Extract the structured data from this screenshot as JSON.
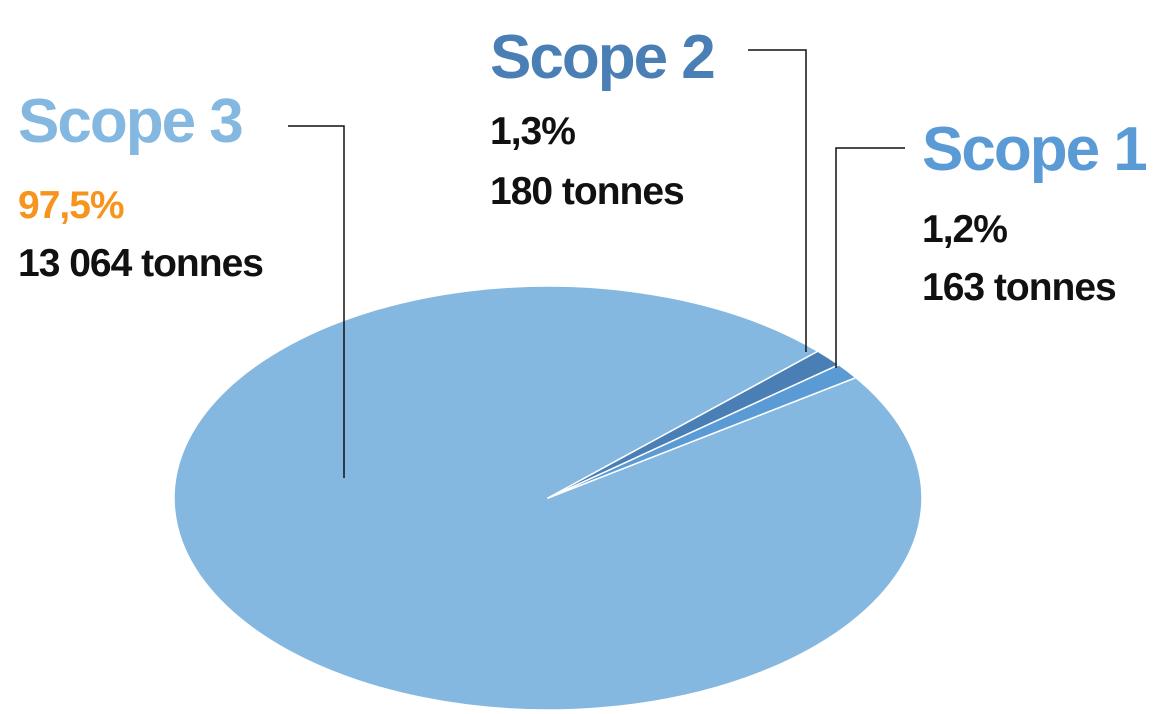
{
  "chart_data": {
    "type": "pie",
    "slices": [
      {
        "label": "Scope 3",
        "percent": "97,5%",
        "tonnes": "13 064 tonnes",
        "value": 13064,
        "color": "#84b8e0",
        "title_color": "#84b8e0",
        "percent_color": "#f7941d"
      },
      {
        "label": "Scope 2",
        "percent": "1,3%",
        "tonnes": "180 tonnes",
        "value": 180,
        "color": "#4a7fb5",
        "title_color": "#4a7fb5",
        "percent_color": "#111111"
      },
      {
        "label": "Scope 1",
        "percent": "1,2%",
        "tonnes": "163 tonnes",
        "value": 163,
        "color": "#5b9bd5",
        "title_color": "#5b9bd5",
        "percent_color": "#111111"
      }
    ],
    "text_color": "#111111",
    "leader_color": "#111111"
  }
}
